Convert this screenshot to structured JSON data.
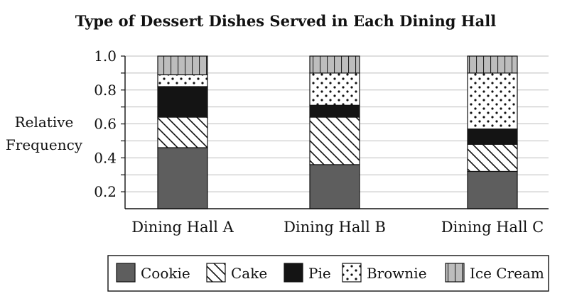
{
  "chart_data": {
    "type": "bar",
    "stacked": true,
    "title": "Type of Dessert Dishes Served in Each Dining Hall",
    "ylabel_lines": [
      "Relative",
      "Frequency"
    ],
    "xlabel": "",
    "categories": [
      "Dining Hall A",
      "Dining Hall B",
      "Dining Hall C"
    ],
    "ylim": [
      0.1,
      1.0
    ],
    "yticks": [
      "0.2",
      "0.4",
      "0.6",
      "0.8",
      "1.0"
    ],
    "grid": true,
    "legend_position": "bottom",
    "series": [
      {
        "name": "Cookie",
        "pattern": "solid-gray",
        "values": [
          0.46,
          0.36,
          0.32
        ]
      },
      {
        "name": "Cake",
        "pattern": "diagonal-stripes",
        "values": [
          0.18,
          0.28,
          0.16
        ]
      },
      {
        "name": "Pie",
        "pattern": "solid-black",
        "values": [
          0.18,
          0.07,
          0.09
        ]
      },
      {
        "name": "Brownie",
        "pattern": "dots",
        "values": [
          0.07,
          0.19,
          0.33
        ]
      },
      {
        "name": "Ice Cream",
        "pattern": "vertical-stripes",
        "values": [
          0.11,
          0.1,
          0.1
        ]
      }
    ]
  }
}
